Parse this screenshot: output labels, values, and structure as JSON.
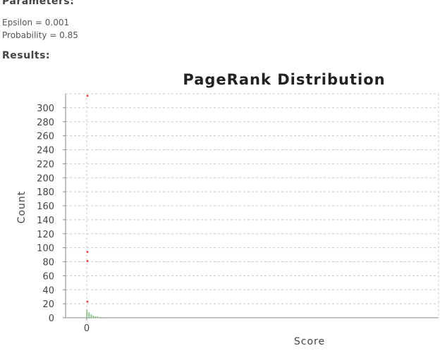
{
  "parameters": {
    "heading": "Parameters:",
    "epsilon": "Epsilon = 0.001",
    "probability": "Probability = 0.85"
  },
  "results": {
    "heading": "Results:"
  },
  "chart_data": {
    "type": "scatter",
    "title": "PageRank Distribution",
    "xlabel": "Score",
    "ylabel": "Count",
    "x_ticks": [
      "0"
    ],
    "y_ticks": [
      0,
      20,
      40,
      60,
      80,
      100,
      120,
      140,
      160,
      180,
      200,
      220,
      240,
      260,
      280,
      300
    ],
    "ylim": [
      0,
      320
    ],
    "grid": true,
    "series": [
      {
        "points": [
          {
            "bin": 0,
            "count": 317
          },
          {
            "bin": 0,
            "count": 94
          },
          {
            "bin": 0,
            "count": 81
          },
          {
            "bin": 0,
            "count": 23
          },
          {
            "bin": 0,
            "count": 12
          },
          {
            "bin": 1,
            "count": 8
          },
          {
            "bin": 2,
            "count": 5
          },
          {
            "bin": 3,
            "count": 3
          },
          {
            "bin": 4,
            "count": 2
          },
          {
            "bin": 5,
            "count": 2
          },
          {
            "bin": 6,
            "count": 1
          },
          {
            "bin": 7,
            "count": 1
          }
        ]
      }
    ],
    "colors": {
      "point": "#e64a4a",
      "bar": "#7fbf7f"
    }
  }
}
